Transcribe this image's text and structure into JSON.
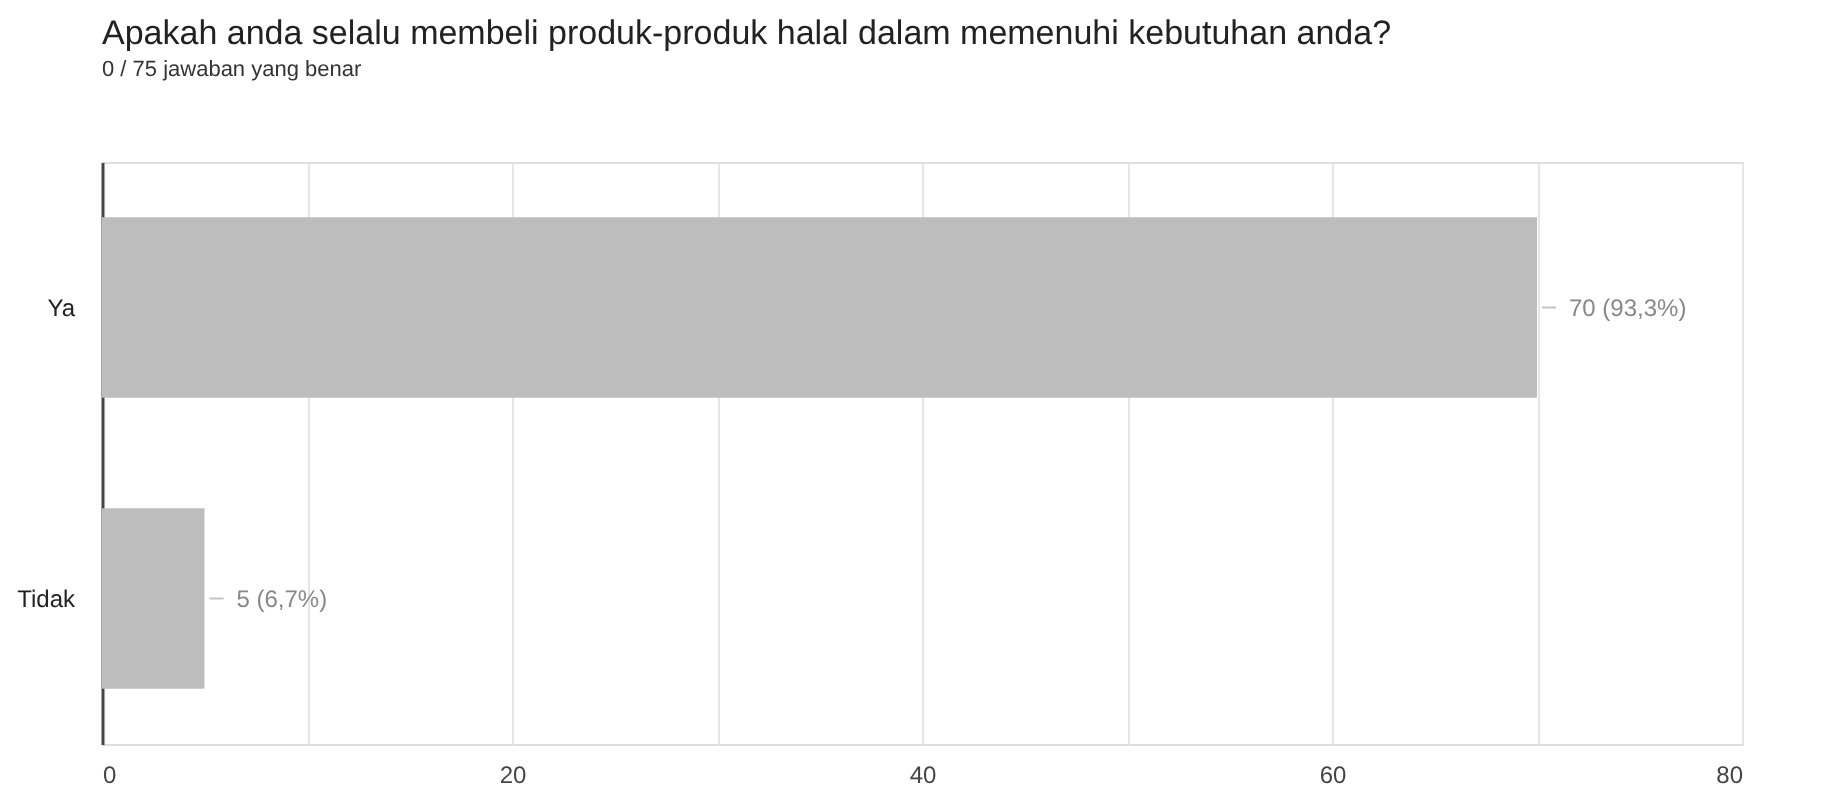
{
  "chart_data": {
    "type": "bar",
    "orientation": "horizontal",
    "title": "Apakah anda selalu membeli produk-produk halal dalam memenuhi kebutuhan anda?",
    "subtitle": "0 / 75 jawaban yang benar",
    "categories": [
      "Ya",
      "Tidak"
    ],
    "values": [
      70,
      5
    ],
    "color": "#bdbdbd",
    "value_labels": [
      "70 (93,3%)",
      "5 (6,7%)"
    ],
    "xlim": [
      0,
      80
    ],
    "xticks": [
      0,
      {
        "value": 10,
        "label": null
      },
      20,
      {
        "value": 30,
        "label": null
      },
      40,
      {
        "value": 50,
        "label": null
      },
      60,
      {
        "value": 70,
        "label": null
      },
      80
    ],
    "grid": true
  }
}
